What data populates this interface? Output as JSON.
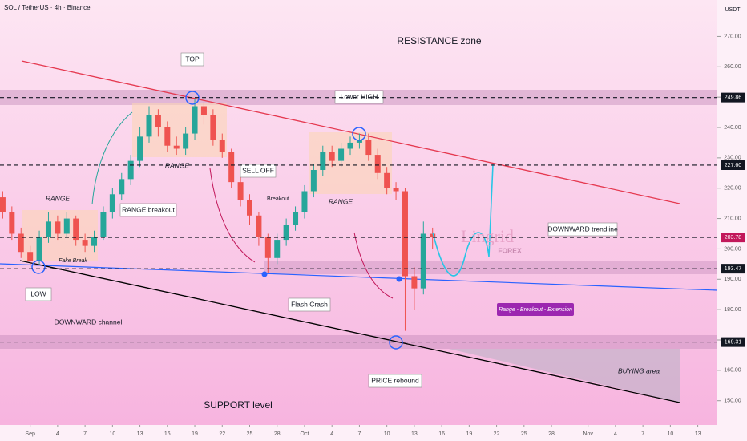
{
  "header": {
    "symbol": "SOL / TetherUS · 4h · Binance",
    "currency": "USDT"
  },
  "annotations": {
    "resistance": "RESISTANCE zone",
    "top": "TOP",
    "lower_high": "Lower HIGH",
    "range1": "RANGE",
    "range2": "RANGE",
    "range3": "RANGE",
    "range_breakout": "RANGE breakout",
    "sell_off": "SELL OFF",
    "breakout": "Breakout",
    "fake_break": "Fake Break",
    "low": "LOW",
    "downward_channel": "DOWNWARD channel",
    "support": "SUPPORT level",
    "flash_crash": "Flash Crash",
    "price_rebound": "PRICE rebound",
    "buying_area": "BUYING area",
    "downward_trendline": "DOWNWARD trendline",
    "extension": "Range - Breakout - Extension",
    "brand": "Lingrid",
    "brand_sub": "FOREX"
  },
  "chart_data": {
    "type": "candlestick",
    "up_color": "#26a69a",
    "down_color": "#ef5350",
    "open": [
      217,
      212,
      205,
      199,
      196,
      204,
      209,
      205,
      210,
      203,
      201,
      204,
      212,
      218,
      223,
      229,
      237,
      244,
      240,
      234,
      233,
      238,
      247,
      244,
      236,
      232,
      222,
      216,
      211,
      204,
      197,
      203,
      208,
      212,
      219,
      226,
      232,
      229,
      233,
      235,
      236,
      231,
      225,
      220,
      219,
      191,
      187,
      205
    ],
    "high": [
      219,
      214,
      207,
      201,
      206,
      212,
      211,
      212,
      211,
      205,
      206,
      214,
      220,
      225,
      231,
      240,
      247,
      246,
      242,
      237,
      240,
      249.5,
      249,
      246,
      238,
      233,
      224,
      218,
      212,
      205,
      205,
      210,
      214,
      221,
      228,
      234,
      234,
      235,
      237,
      238,
      238,
      233,
      227,
      222,
      220,
      194,
      209,
      207
    ],
    "low": [
      210,
      203,
      197,
      194,
      195,
      202,
      203,
      204,
      201,
      199,
      199,
      203,
      210,
      216,
      221,
      227,
      235,
      237,
      232,
      231,
      231,
      236,
      241,
      234,
      230,
      220,
      214,
      208,
      201,
      192,
      195,
      201,
      206,
      210,
      217,
      224,
      227,
      227,
      231,
      233,
      229,
      223,
      218,
      216,
      173,
      180,
      185,
      200
    ],
    "close": [
      212,
      205,
      199,
      196,
      204,
      209,
      205,
      210,
      203,
      201,
      204,
      212,
      218,
      223,
      229,
      237,
      244,
      240,
      234,
      233,
      238,
      247,
      244,
      236,
      232,
      222,
      216,
      211,
      204,
      197,
      203,
      208,
      212,
      219,
      226,
      232,
      229,
      233,
      235,
      236,
      231,
      225,
      220,
      219,
      191,
      187,
      205,
      203.78
    ],
    "xlim": [
      -0.3,
      77.7
    ],
    "ylim": [
      142,
      282
    ],
    "xticks": [
      {
        "value": 3,
        "label": "Sep"
      },
      {
        "value": 6,
        "label": "4"
      },
      {
        "value": 9,
        "label": "7"
      },
      {
        "value": 12,
        "label": "10"
      },
      {
        "value": 15,
        "label": "13"
      },
      {
        "value": 18,
        "label": "16"
      },
      {
        "value": 21,
        "label": "19"
      },
      {
        "value": 24,
        "label": "22"
      },
      {
        "value": 27,
        "label": "25"
      },
      {
        "value": 30,
        "label": "28"
      },
      {
        "value": 33,
        "label": "Oct"
      },
      {
        "value": 36,
        "label": "4"
      },
      {
        "value": 39,
        "label": "7"
      },
      {
        "value": 42,
        "label": "10"
      },
      {
        "value": 45,
        "label": "13"
      },
      {
        "value": 48,
        "label": "16"
      },
      {
        "value": 51,
        "label": "19"
      },
      {
        "value": 54,
        "label": "22"
      },
      {
        "value": 57,
        "label": "25"
      },
      {
        "value": 60,
        "label": "28"
      },
      {
        "value": 64,
        "label": "Nov"
      },
      {
        "value": 67,
        "label": "4"
      },
      {
        "value": 70,
        "label": "7"
      },
      {
        "value": 73,
        "label": "10"
      },
      {
        "value": 76,
        "label": "13"
      }
    ],
    "yticks": [
      {
        "value": 150,
        "label": "150.00"
      },
      {
        "value": 160,
        "label": "160.00"
      },
      {
        "value": 170,
        "label": "170.00"
      },
      {
        "value": 180,
        "label": "180.00"
      },
      {
        "value": 190,
        "label": "190.00"
      },
      {
        "value": 200,
        "label": "200.00"
      },
      {
        "value": 210,
        "label": "210.00"
      },
      {
        "value": 220,
        "label": "220.00"
      },
      {
        "value": 230,
        "label": "230.00"
      },
      {
        "value": 240,
        "label": "240.00"
      },
      {
        "value": 250,
        "label": "250.00"
      },
      {
        "value": 260,
        "label": "260.00"
      },
      {
        "value": 270,
        "label": "270.00"
      }
    ],
    "levels": [
      {
        "value": 249.86,
        "color": "#131722"
      },
      {
        "value": {
          "value": 227.6,
          "label": "227.60"
        },
        "color": "#131722"
      },
      {
        "value": 203.78,
        "color": "#c2185b"
      },
      {
        "value": 193.47,
        "color": "#131722"
      },
      {
        "value": 169.31,
        "color": "#131722"
      }
    ]
  }
}
